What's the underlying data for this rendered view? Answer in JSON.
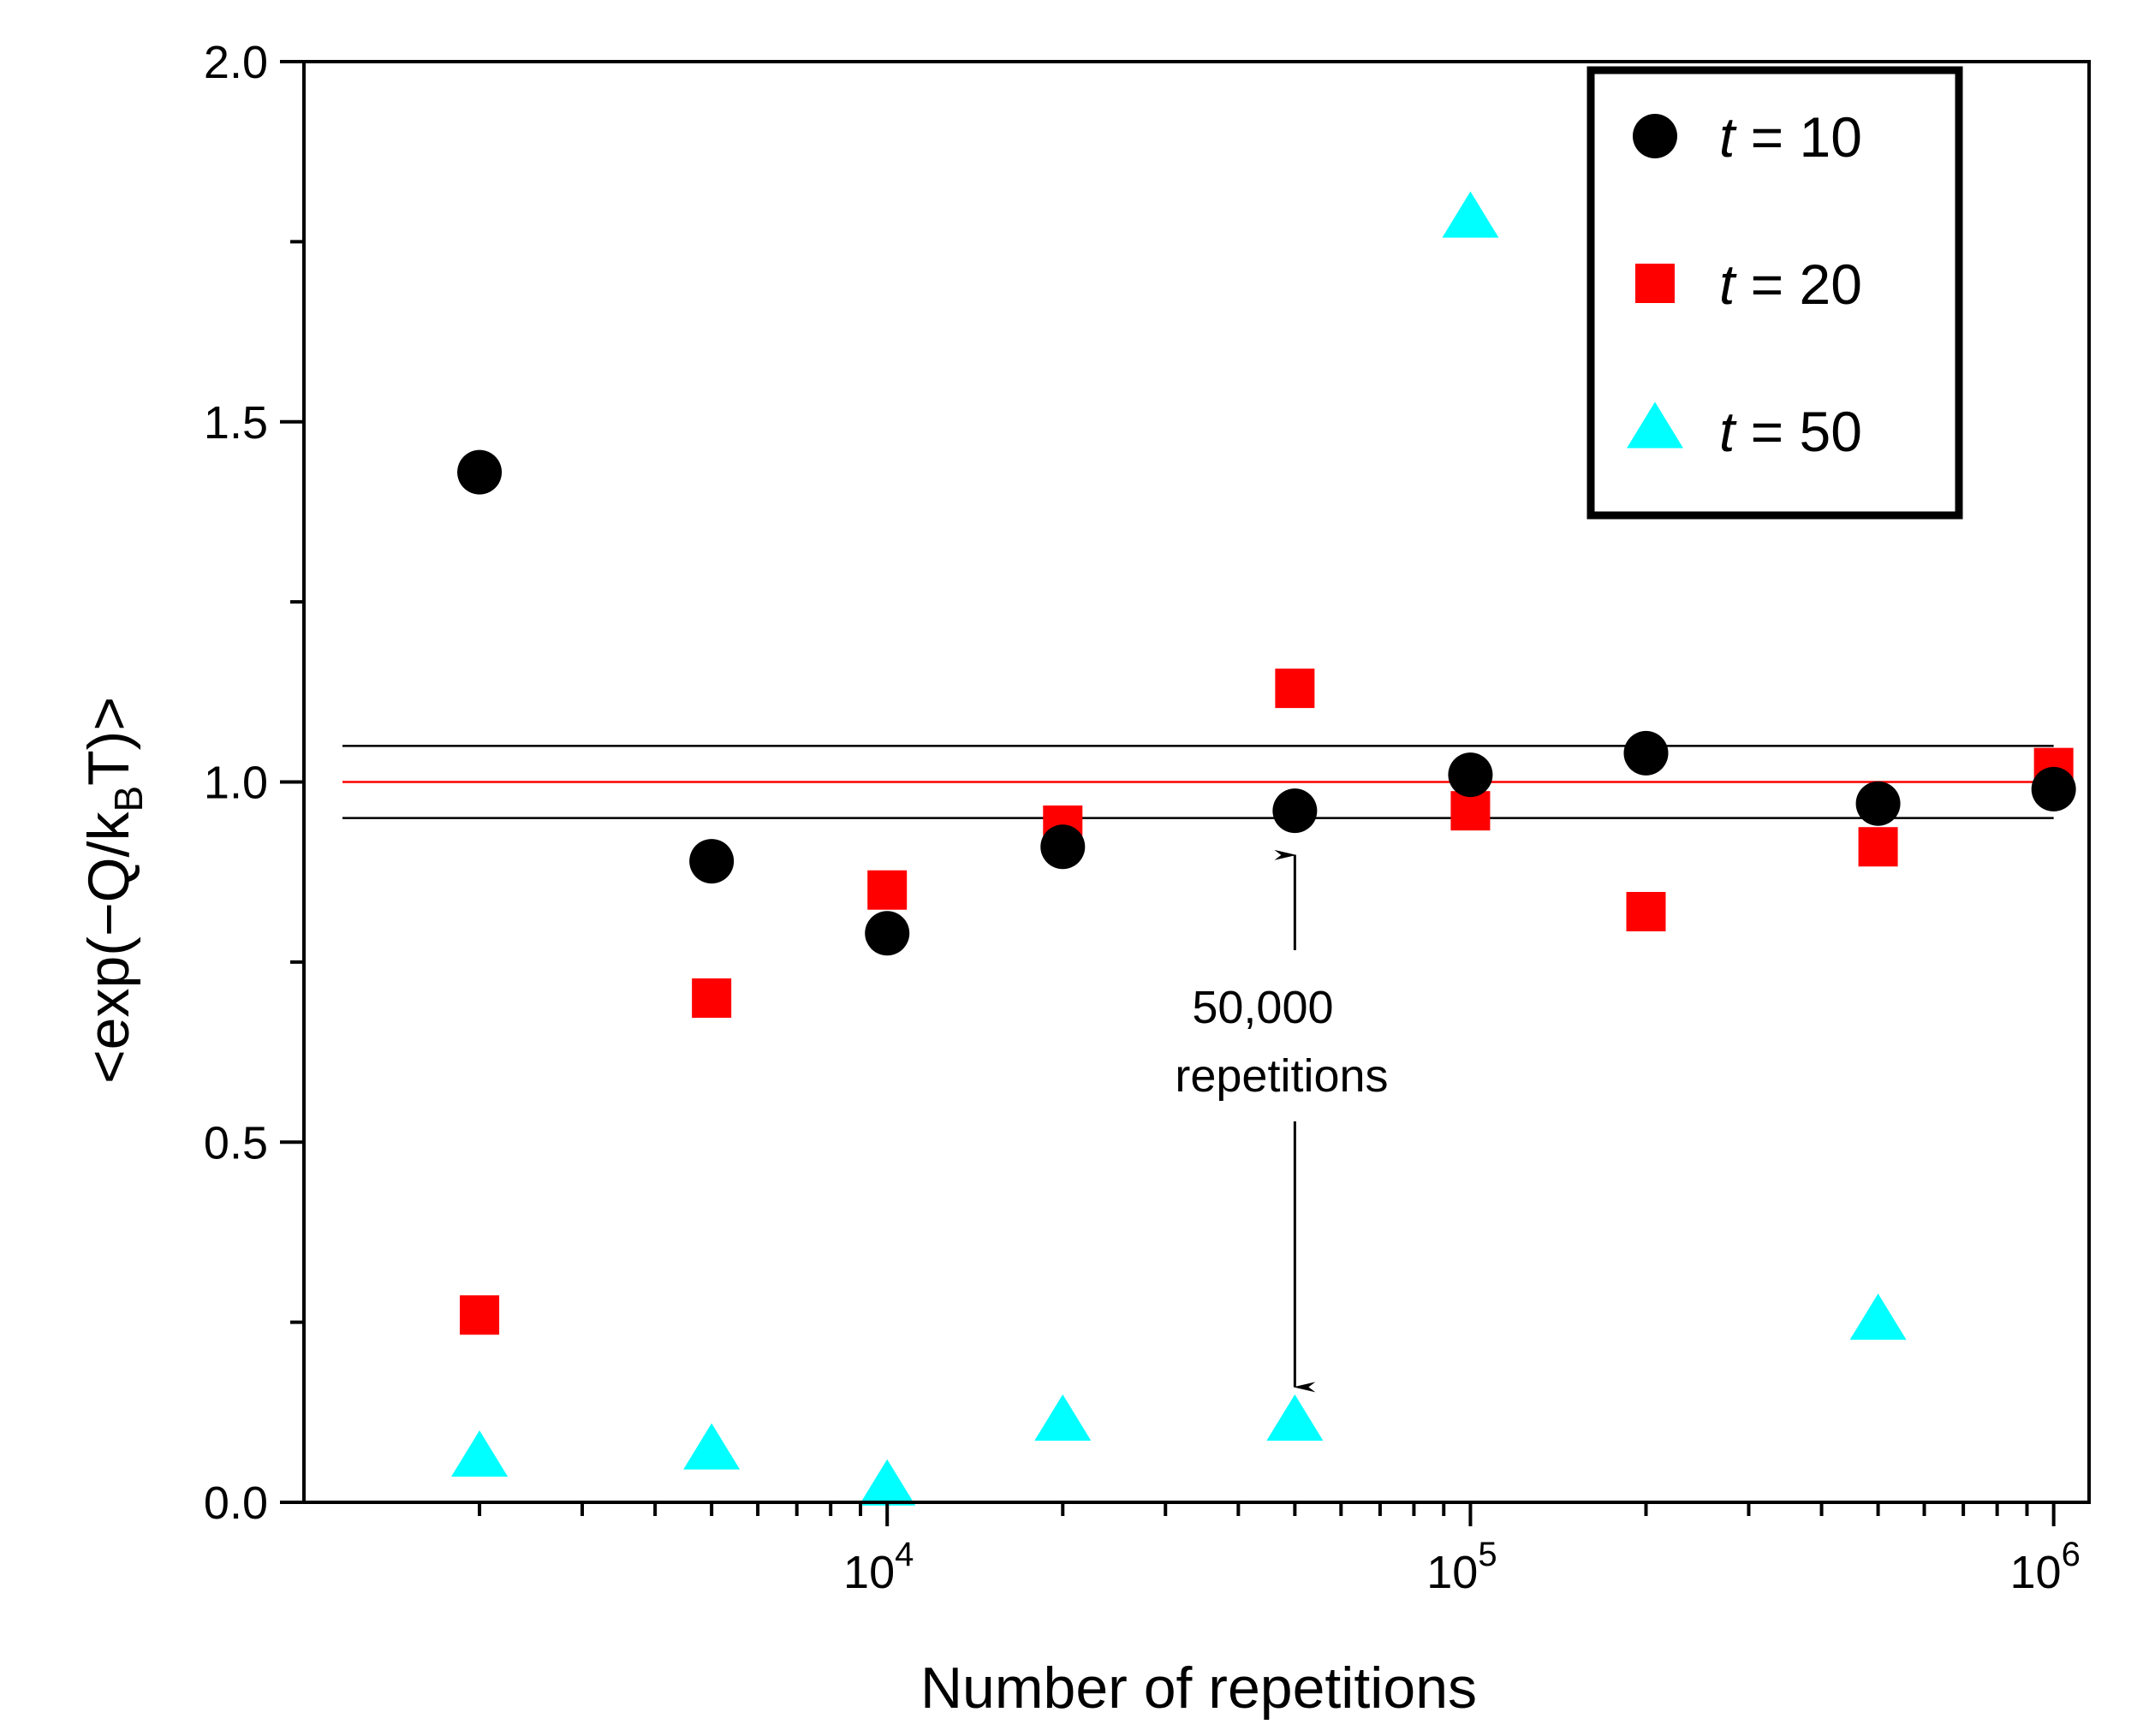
{
  "chart_data": {
    "type": "scatter",
    "title": "",
    "xlabel": "Number of repetitions",
    "ylabel": "<exp(−Q/k",
    "ylabel_sub": "B",
    "ylabel_end": "T)>",
    "xscale": "log",
    "xlim": [
      1000,
      1150000
    ],
    "ylim": [
      0,
      2.0
    ],
    "x_ticks": [
      {
        "value": 10000,
        "base": "10",
        "exp": "4"
      },
      {
        "value": 100000,
        "base": "10",
        "exp": "5"
      },
      {
        "value": 1000000,
        "base": "10",
        "exp": "6"
      }
    ],
    "y_ticks": [
      {
        "value": 0.0,
        "label": "0.0"
      },
      {
        "value": 0.5,
        "label": "0.5"
      },
      {
        "value": 1.0,
        "label": "1.0"
      },
      {
        "value": 1.5,
        "label": "1.5"
      },
      {
        "value": 2.0,
        "label": "2.0"
      }
    ],
    "y_minor_ticks": [
      0.25,
      0.75,
      1.25,
      1.75
    ],
    "series": [
      {
        "name": "t = 10",
        "italic": "t",
        "rest": " = 10",
        "marker": "circle",
        "color": "#000000",
        "x": [
          2000,
          5000,
          10000,
          20000,
          50000,
          100000,
          200000,
          500000,
          1000000
        ],
        "y": [
          1.43,
          0.89,
          0.79,
          0.91,
          0.96,
          1.01,
          1.04,
          0.97,
          0.99
        ]
      },
      {
        "name": "t = 20",
        "italic": "t",
        "rest": " = 20",
        "marker": "square",
        "color": "#ff0000",
        "x": [
          2000,
          5000,
          10000,
          20000,
          50000,
          100000,
          200000,
          500000,
          1000000
        ],
        "y": [
          0.26,
          0.7,
          0.85,
          0.94,
          1.13,
          0.96,
          0.82,
          0.91,
          1.02
        ]
      },
      {
        "name": "t = 50",
        "italic": "t",
        "rest": " = 50",
        "marker": "triangle",
        "color": "#00ffff",
        "x": [
          2000,
          5000,
          10000,
          20000,
          50000,
          100000,
          500000
        ],
        "y": [
          0.06,
          0.07,
          0.02,
          0.11,
          0.11,
          1.78,
          0.25
        ]
      }
    ],
    "reference_lines": [
      {
        "y": 1.05,
        "color": "#000000"
      },
      {
        "y": 1.0,
        "color": "#ff0000"
      },
      {
        "y": 0.95,
        "color": "#000000"
      }
    ],
    "reference_x_end": 1000000,
    "annotation": {
      "lines": [
        "50,000",
        "repetitions"
      ],
      "x": 50000,
      "arrow_up_to": 0.92,
      "arrow_down_to": 0.16
    },
    "legend": {
      "position": "top-right"
    }
  }
}
